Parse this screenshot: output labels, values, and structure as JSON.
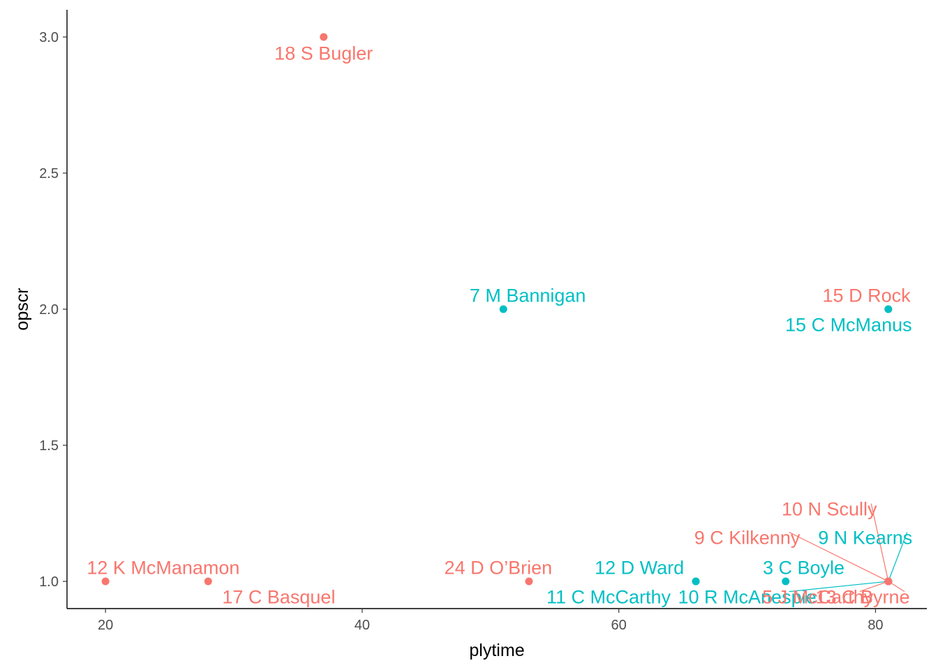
{
  "chart_data": {
    "type": "scatter",
    "xlabel": "plytime",
    "ylabel": "opscr",
    "xlim": [
      17,
      84
    ],
    "ylim": [
      0.9,
      3.1
    ],
    "x_ticks": [
      20,
      40,
      60,
      80
    ],
    "x_tick_labels": [
      "20",
      "40",
      "60",
      "80"
    ],
    "y_ticks": [
      1.0,
      1.5,
      2.0,
      2.5,
      3.0
    ],
    "y_tick_labels": [
      "1.0",
      "1.5",
      "2.0",
      "2.5",
      "3.0"
    ],
    "grid": false,
    "legend": "none",
    "group_colors": {
      "a": "#F8766D",
      "b": "#00BFC4"
    },
    "points": [
      {
        "x": 37,
        "y": 3.0,
        "group": "a",
        "label": "18  S Bugler",
        "label_anchor": "middle",
        "label_dx": 0,
        "label_dy": 0.06
      },
      {
        "x": 51,
        "y": 2.0,
        "group": "b",
        "label": "7  M Bannigan",
        "label_anchor": "middle",
        "label_dx": 1.9,
        "label_dy": -0.05
      },
      {
        "x": 81,
        "y": 2.0,
        "group": "a",
        "label": "15  D Rock",
        "label_anchor": "middle",
        "label_dx": -1.7,
        "label_dy": -0.05
      },
      {
        "x": 81,
        "y": 2.0,
        "group": "b",
        "label": "15  C McManus",
        "label_anchor": "middle",
        "label_dx": -3.1,
        "label_dy": 0.058
      },
      {
        "x": 20,
        "y": 1.0,
        "group": "a",
        "label": "12  K McManamon",
        "label_anchor": "middle",
        "label_dx": 4.5,
        "label_dy": -0.05
      },
      {
        "x": 28,
        "y": 1.0,
        "group": "a",
        "label": "17  C Basquel",
        "label_anchor": "middle",
        "label_dx": 5.5,
        "label_dy": 0.058
      },
      {
        "x": 53,
        "y": 1.0,
        "group": "a",
        "label": "24  D O’Brien",
        "label_anchor": "middle",
        "label_dx": -2.4,
        "label_dy": -0.05
      },
      {
        "x": 66,
        "y": 1.0,
        "group": "b",
        "label": "12  D Ward",
        "label_anchor": "middle",
        "label_dx": -4.4,
        "label_dy": -0.05
      },
      {
        "x": 66,
        "y": 1.0,
        "group": "b",
        "label": "11  C McCarthy",
        "label_anchor": "middle",
        "label_dx": -6.8,
        "label_dy": 0.058
      },
      {
        "x": 73,
        "y": 1.0,
        "group": "b",
        "label": "3  C Boyle",
        "label_anchor": "middle",
        "label_dx": 1.4,
        "label_dy": -0.05
      },
      {
        "x": 81,
        "y": 1.0,
        "group": "a",
        "label": "10  N Scully",
        "label_anchor": "middle",
        "label_dx": -4.6,
        "label_dy": -0.265,
        "leader": true
      },
      {
        "x": 81,
        "y": 1.0,
        "group": "a",
        "label": "9  C Kilkenny",
        "label_anchor": "middle",
        "label_dx": -11.0,
        "label_dy": -0.16,
        "leader": true
      },
      {
        "x": 81,
        "y": 1.0,
        "group": "b",
        "label": "9  N Kearns",
        "label_anchor": "middle",
        "label_dx": -1.8,
        "label_dy": -0.16,
        "leader": true
      },
      {
        "x": 81,
        "y": 1.0,
        "group": "b",
        "label": "10  R McAnespie",
        "label_anchor": "middle",
        "label_dx": -11.0,
        "label_dy": 0.058,
        "leader": true
      },
      {
        "x": 81,
        "y": 1.0,
        "group": "a",
        "label": "5  J McCarthy",
        "label_anchor": "middle",
        "label_dx": -5.5,
        "label_dy": 0.058,
        "leader": true
      },
      {
        "x": 81,
        "y": 1.0,
        "group": "a",
        "label": "13  C Byrne",
        "label_anchor": "middle",
        "label_dx": -2.0,
        "label_dy": 0.058,
        "leader": true
      }
    ]
  }
}
